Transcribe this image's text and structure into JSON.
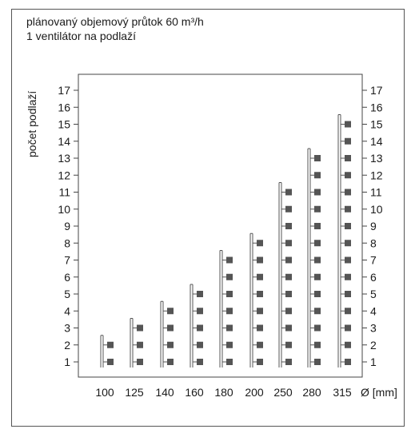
{
  "header": {
    "line1": "plánovaný objemový průtok 60 m³/h",
    "line2": "1 ventilátor na podlaží"
  },
  "chart_data": {
    "type": "bar",
    "title": "",
    "ylabel": "počet podlaží",
    "xlabel": "Ø [mm]",
    "categories": [
      "100",
      "125",
      "140",
      "160",
      "180",
      "200",
      "250",
      "280",
      "315"
    ],
    "values": [
      2,
      3,
      4,
      5,
      7,
      8,
      11,
      13,
      15
    ],
    "yticks": [
      "1",
      "2",
      "3",
      "4",
      "5",
      "6",
      "7",
      "8",
      "9",
      "10",
      "11",
      "12",
      "13",
      "14",
      "15",
      "16",
      "17"
    ],
    "ylim": [
      0,
      17
    ],
    "grid": false,
    "marker_color": "#555555",
    "line_color": "#555555"
  }
}
